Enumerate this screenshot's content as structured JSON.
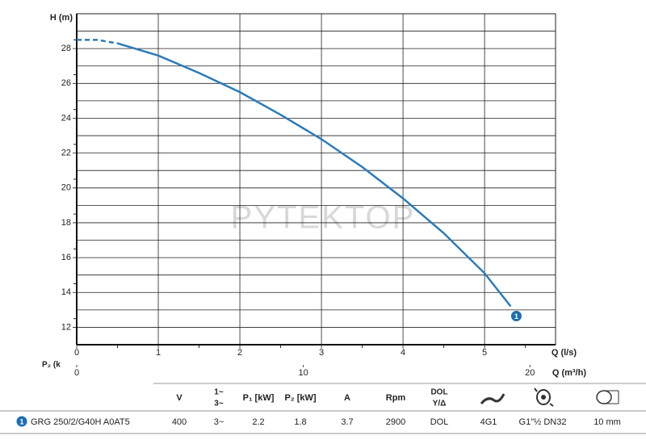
{
  "chart_data": {
    "type": "line",
    "y_label": "H (m)",
    "x_label": "Q (l/s)",
    "x2_label": "Q (m³/h)",
    "power_label": "P₂ (k",
    "watermark": "PYTEKTOP",
    "curve_label": "1",
    "x": [
      0,
      0.25,
      0.5,
      1,
      1.5,
      2,
      2.5,
      3,
      3.5,
      4,
      4.5,
      5,
      5.32
    ],
    "series": [
      {
        "color": "#2b7bb9",
        "dashed": true,
        "values": [
          28.5,
          28.5,
          28.3,
          null,
          null,
          null,
          null,
          null,
          null,
          null,
          null,
          null,
          null
        ]
      },
      {
        "color": "#2b7bb9",
        "dashed": false,
        "values": [
          null,
          null,
          28.3,
          27.6,
          26.6,
          25.5,
          24.2,
          22.8,
          21.2,
          19.4,
          17.4,
          15.1,
          13.2
        ]
      }
    ],
    "xlim": [
      0,
      5.87
    ],
    "xticks": [
      0,
      1,
      2,
      3,
      4,
      5
    ],
    "x2lim": [
      0,
      21.13
    ],
    "x2ticks": [
      0,
      10,
      20
    ],
    "ylim": [
      11,
      30
    ],
    "yticks": [
      12,
      14,
      16,
      18,
      20,
      22,
      24,
      26,
      28
    ],
    "grid": true
  },
  "table": {
    "headers": [
      "V",
      [
        "1~",
        "3~"
      ],
      "P₁ [kW]",
      "P₂ [kW]",
      "A",
      "Rpm",
      [
        "DOL",
        "Y/Δ"
      ]
    ],
    "rows": [
      [
        "1",
        "GRG 250/2/G40H A0AT5",
        "400",
        "3~",
        "2.2",
        "1.8",
        "3.7",
        "2900",
        "DOL",
        "4G1",
        "G1\"½ DN32",
        "10 mm"
      ]
    ]
  }
}
